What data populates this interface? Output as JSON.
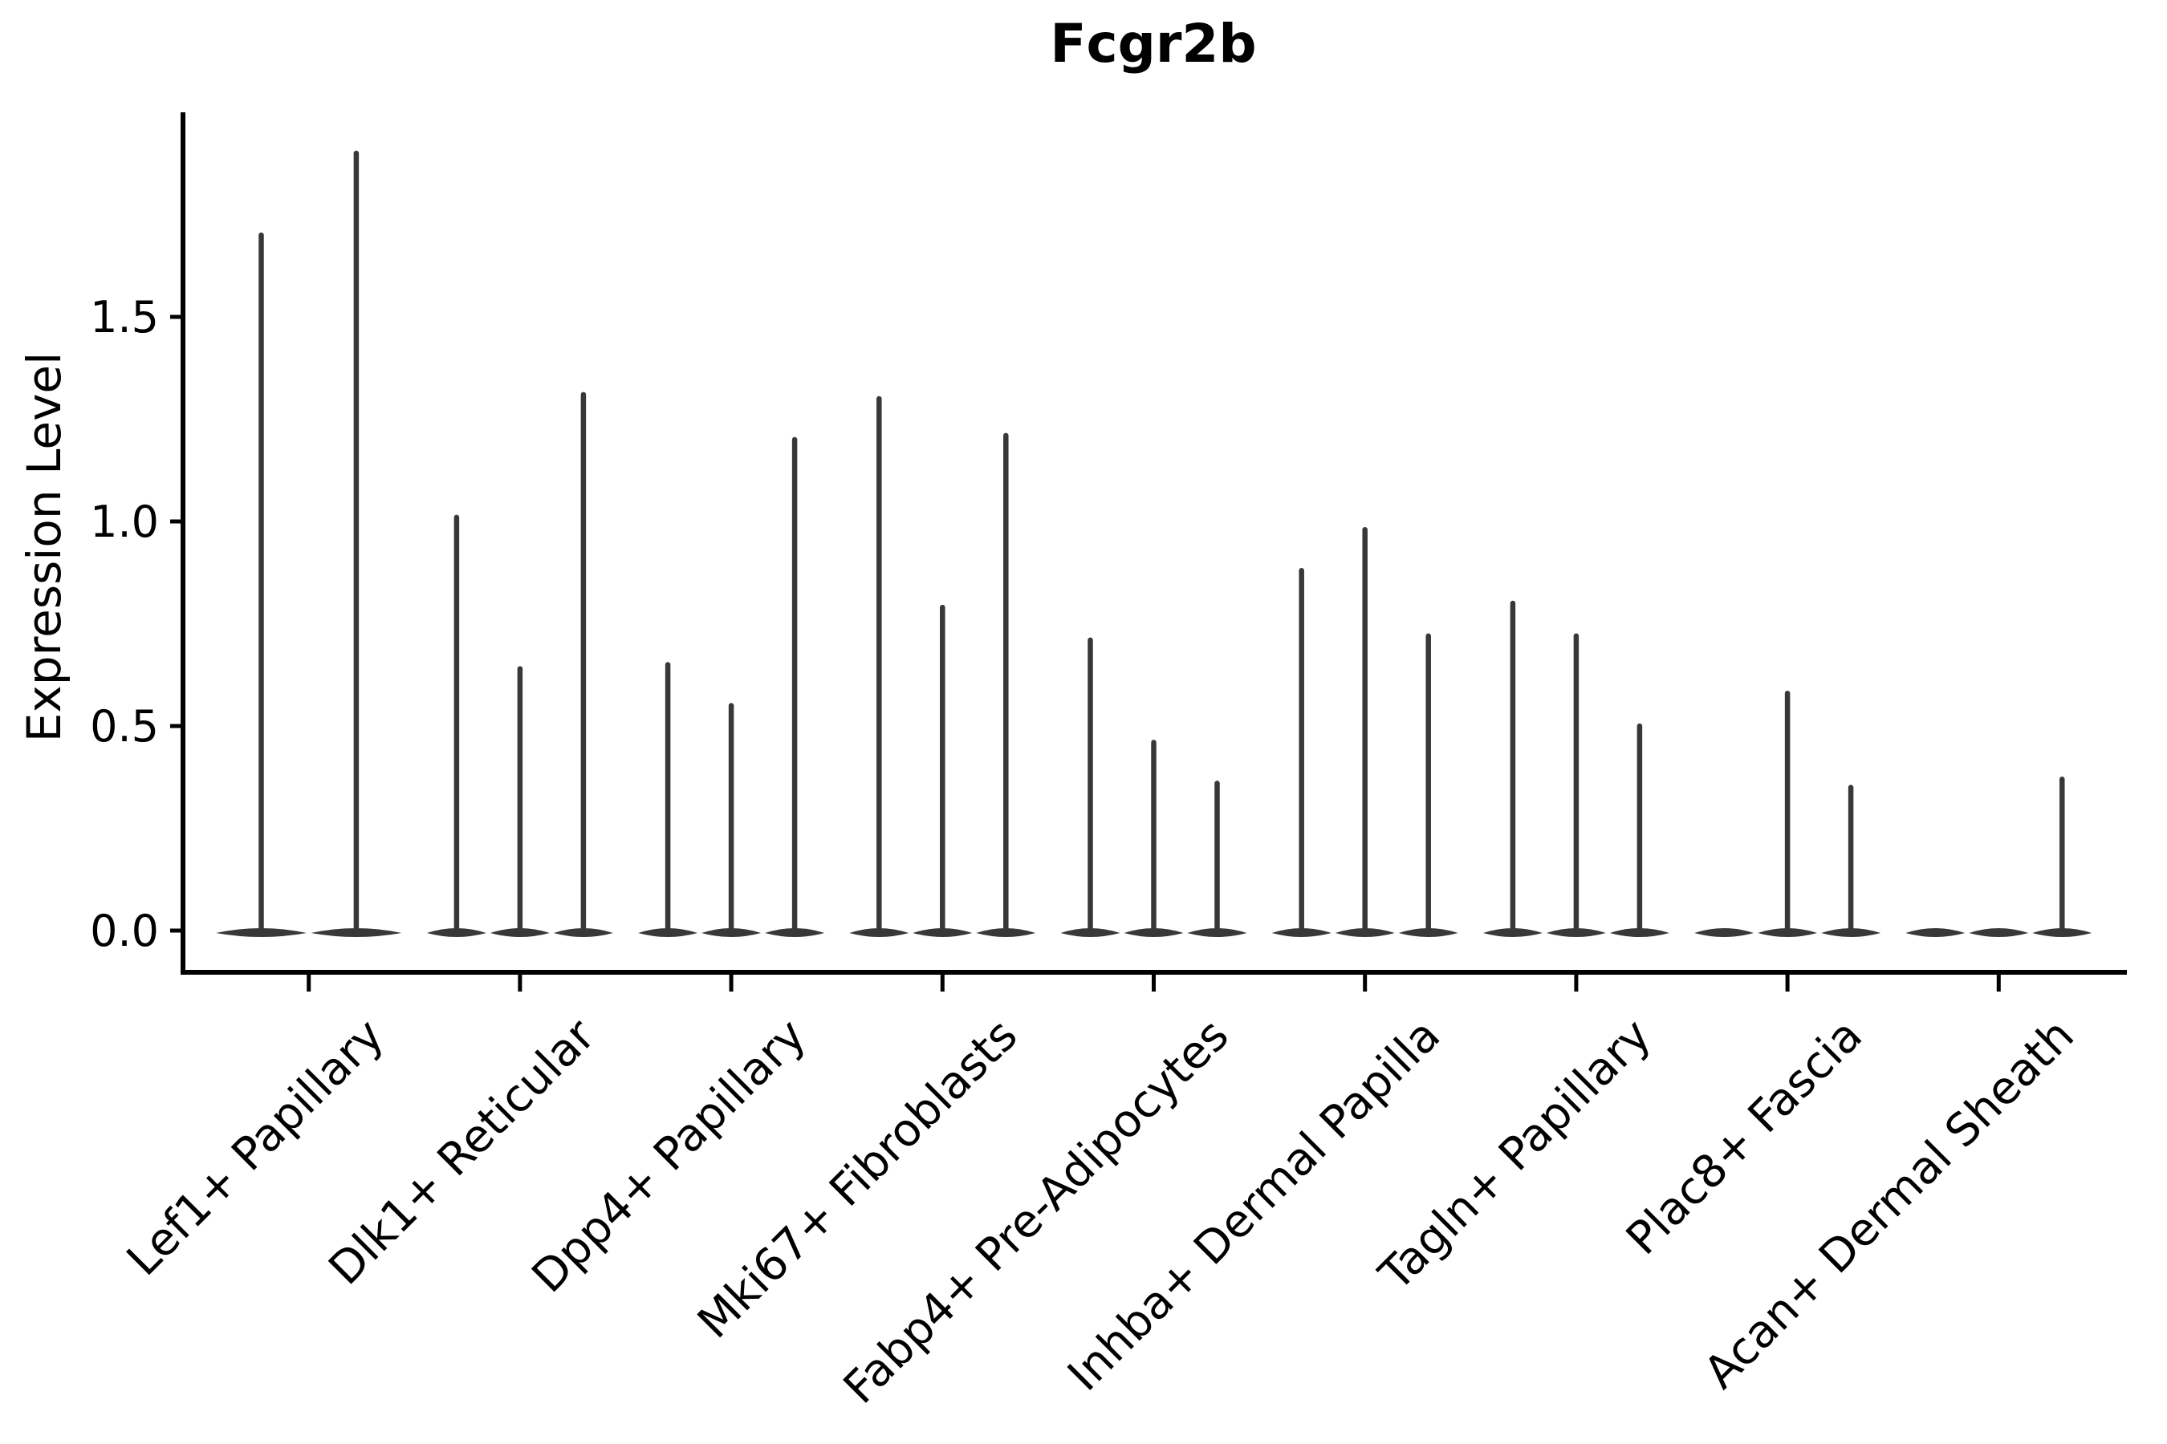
{
  "chart_data": {
    "type": "violin",
    "title": "Fcgr2b",
    "xlabel": "",
    "ylabel": "Expression Level",
    "ylim": [
      -0.1,
      2.0
    ],
    "yticks": [
      {
        "label": "0.0",
        "value": 0.0
      },
      {
        "label": "0.5",
        "value": 0.5
      },
      {
        "label": "1.0",
        "value": 1.0
      },
      {
        "label": "1.5",
        "value": 1.5
      }
    ],
    "grid": false,
    "legend": "none",
    "categories": [
      "Lef1+ Papillary",
      "Dlk1+ Reticular",
      "Dpp4+ Papillary",
      "Mki67+ Fibroblasts",
      "Fabp4+ Pre-Adipocytes",
      "Inhba+ Dermal Papilla",
      "Tagln+ Papillary",
      "Plac8+ Fascia",
      "Acan+ Dermal Sheath"
    ],
    "groups": [
      {
        "label": "Lef1+ Papillary",
        "violin_max_values": [
          1.7,
          1.9
        ]
      },
      {
        "label": "Dlk1+ Reticular",
        "violin_max_values": [
          1.01,
          0.64,
          1.31
        ]
      },
      {
        "label": "Dpp4+ Papillary",
        "violin_max_values": [
          0.65,
          0.55,
          1.2
        ]
      },
      {
        "label": "Mki67+ Fibroblasts",
        "violin_max_values": [
          1.3,
          0.79,
          1.21
        ]
      },
      {
        "label": "Fabp4+ Pre-Adipocytes",
        "violin_max_values": [
          0.71,
          0.46,
          0.36
        ]
      },
      {
        "label": "Inhba+ Dermal Papilla",
        "violin_max_values": [
          0.88,
          0.98,
          0.72
        ]
      },
      {
        "label": "Tagln+ Papillary",
        "violin_max_values": [
          0.8,
          0.72,
          0.5
        ]
      },
      {
        "label": "Plac8+ Fascia",
        "violin_max_values": [
          0.0,
          0.58,
          0.35
        ]
      },
      {
        "label": "Acan+ Dermal Sheath",
        "violin_max_values": [
          0.0,
          0.0,
          0.37
        ]
      }
    ],
    "colors": {
      "violin": "#383838",
      "axis": "#000000",
      "text": "#000000",
      "background": "#ffffff"
    }
  }
}
